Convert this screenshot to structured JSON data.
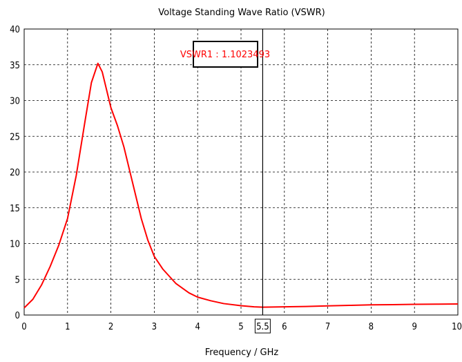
{
  "chart_data": {
    "type": "line",
    "title": "Voltage Standing Wave Ratio (VSWR)",
    "xlabel": "Frequency / GHz",
    "ylabel": "",
    "xlim": [
      0,
      10
    ],
    "ylim": [
      0,
      40
    ],
    "x_ticks": [
      0,
      1,
      2,
      3,
      4,
      5,
      6,
      7,
      8,
      9,
      10
    ],
    "y_ticks": [
      0,
      5,
      10,
      15,
      20,
      25,
      30,
      35,
      40
    ],
    "grid": true,
    "series": [
      {
        "color": "#ff0000",
        "x": [
          0,
          0.2,
          0.4,
          0.6,
          0.8,
          1.0,
          1.2,
          1.4,
          1.55,
          1.7,
          1.8,
          1.9,
          2.0,
          2.15,
          2.3,
          2.5,
          2.7,
          2.85,
          3.0,
          3.2,
          3.5,
          3.8,
          4.0,
          4.3,
          4.6,
          5.0,
          5.3,
          5.5,
          6.0,
          6.5,
          7.0,
          7.5,
          8.0,
          8.5,
          9.0,
          9.5,
          10.0
        ],
        "y": [
          1.0,
          2.2,
          4.2,
          6.8,
          9.8,
          13.5,
          19.5,
          27.0,
          32.5,
          35.2,
          34.0,
          31.5,
          29.0,
          26.5,
          23.5,
          18.5,
          13.5,
          10.5,
          8.2,
          6.4,
          4.4,
          3.1,
          2.5,
          2.0,
          1.6,
          1.3,
          1.15,
          1.1,
          1.15,
          1.2,
          1.28,
          1.35,
          1.42,
          1.45,
          1.5,
          1.52,
          1.55
        ]
      }
    ],
    "marker": {
      "label": "VSWR1 : 1.1023493",
      "x": 5.5,
      "x_label": "5.5",
      "value": 1.1023493
    }
  },
  "colors": {
    "curve": "#ff0000",
    "grid": "#000000",
    "marker_line": "#000000",
    "marker_text": "#ff0000"
  }
}
